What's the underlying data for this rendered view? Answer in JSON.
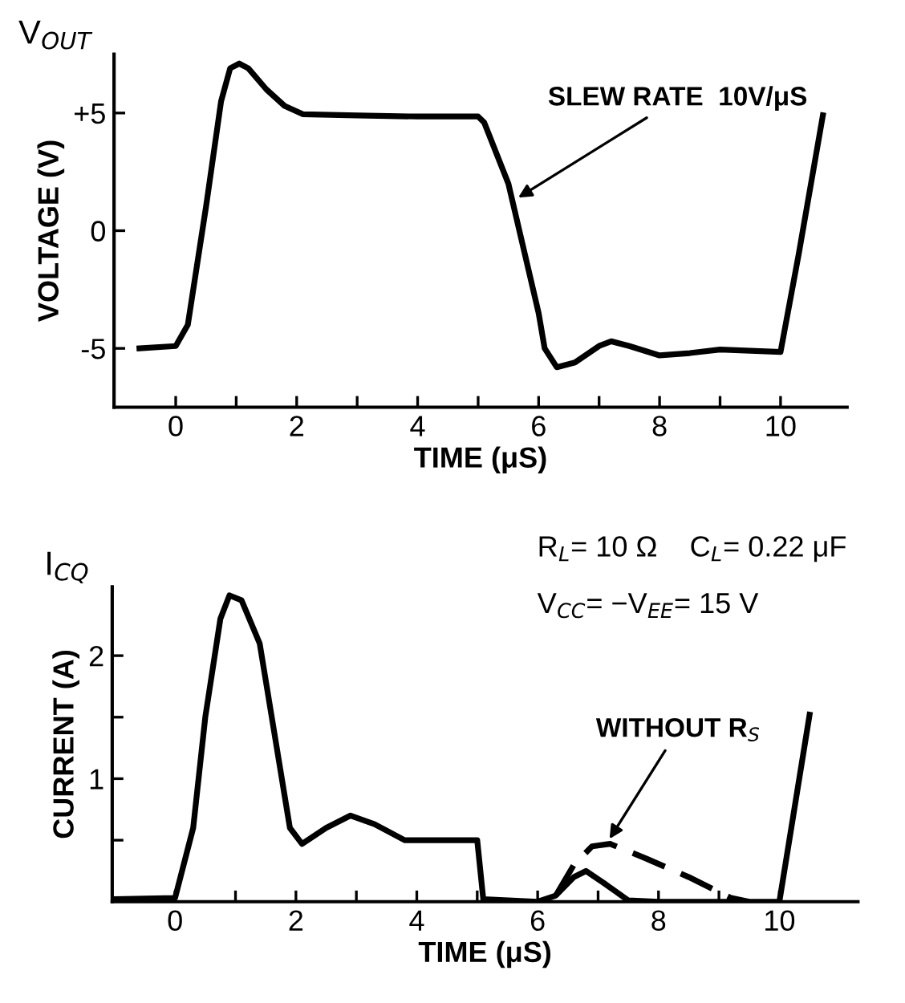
{
  "chart_data": [
    {
      "type": "line",
      "xlabel": "TIME (μS)",
      "ylabel": "VOLTAGE (V)",
      "xlim": [
        -1.02,
        11.1
      ],
      "ylim": [
        -7.5,
        7.5
      ],
      "xticks": [
        0,
        {
          "value": 1,
          "label": null
        },
        2,
        {
          "value": 3,
          "label": null
        },
        4,
        {
          "value": 5,
          "label": null
        },
        6,
        {
          "value": 7,
          "label": null
        },
        8,
        {
          "value": 9,
          "label": null
        },
        10
      ],
      "yticks": [
        -5,
        0,
        {
          "value": 5,
          "label": "+5"
        }
      ],
      "grid": false,
      "legend": false,
      "marker": "none",
      "annotations": [
        "V$_{OUT}$",
        {
          "text": "SLEW RATE  10V/μS",
          "x": 5.6,
          "y": 1.3
        }
      ],
      "series": [
        {
          "color": "#000000",
          "line_style": "solid",
          "x": [
            -0.6,
            0,
            0.2,
            0.5,
            0.75,
            0.9,
            1.05,
            1.2,
            1.5,
            1.8,
            2.1,
            3,
            4,
            5,
            5.1,
            5.5,
            6,
            6.1,
            6.3,
            6.6,
            7,
            7.2,
            7.5,
            8,
            8.5,
            9,
            10,
            10.3,
            10.7
          ],
          "values": [
            -5,
            -4.9,
            -4,
            1,
            5.5,
            6.9,
            7.1,
            6.9,
            6,
            5.3,
            4.95,
            4.9,
            4.85,
            4.85,
            4.6,
            2,
            -3.5,
            -5,
            -5.8,
            -5.6,
            -4.9,
            -4.7,
            -4.9,
            -5.3,
            -5.2,
            -5.05,
            -5.15,
            -1,
            4.9
          ]
        }
      ]
    },
    {
      "type": "line",
      "xlabel": "TIME (μS)",
      "ylabel": "CURRENT (A)",
      "xlim": [
        -1.04,
        11.3
      ],
      "ylim": [
        0,
        2.56
      ],
      "xticks": [
        0,
        {
          "value": 1,
          "label": null
        },
        2,
        {
          "value": 3,
          "label": null
        },
        4,
        {
          "value": 5,
          "label": null
        },
        6,
        {
          "value": 7,
          "label": null
        },
        8,
        {
          "value": 9,
          "label": null
        },
        10
      ],
      "yticks": [
        {
          "value": 0.5,
          "label": null
        },
        1,
        {
          "value": 1.5,
          "label": null
        },
        2
      ],
      "grid": false,
      "legend": false,
      "marker": "none",
      "annotations": [
        "I$_{CQ}$",
        "R$_{L}$= 10 Ω    C$_{L}$= 0.22 μF",
        "V$_{CC}$= −V$_{EE}$= 15 V",
        {
          "text": "WITHOUT R$_{S}$",
          "x": 7.15,
          "y": 0.48
        }
      ],
      "series": [
        {
          "color": "#000000",
          "line_style": "solid",
          "x": [
            -1,
            0,
            0.3,
            0.5,
            0.75,
            0.9,
            1.1,
            1.4,
            1.7,
            1.9,
            2.1,
            2.5,
            2.9,
            3.3,
            3.8,
            5,
            5.1,
            6,
            6.3,
            6.6,
            6.8,
            7.1,
            7.5,
            8,
            10,
            10.5
          ],
          "values": [
            0.02,
            0.03,
            0.6,
            1.5,
            2.3,
            2.49,
            2.45,
            2.1,
            1.2,
            0.6,
            0.47,
            0.6,
            0.7,
            0.63,
            0.5,
            0.5,
            0.02,
            0,
            0.05,
            0.2,
            0.25,
            0.15,
            0.01,
            0,
            0,
            1.52
          ]
        },
        {
          "color": "#000000",
          "line_style": "dashed",
          "x": [
            6.3,
            6.6,
            6.9,
            7.2,
            7.8,
            8.5,
            9.2,
            9.5
          ],
          "values": [
            0.05,
            0.3,
            0.45,
            0.47,
            0.35,
            0.2,
            0.03,
            0
          ]
        }
      ]
    }
  ]
}
